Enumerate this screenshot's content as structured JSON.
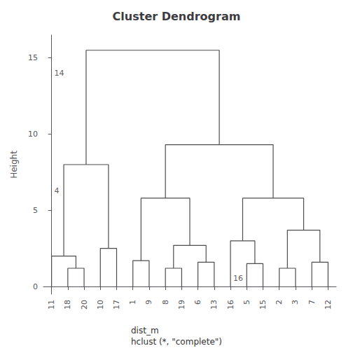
{
  "chart_data": {
    "type": "dendrogram",
    "title": "Cluster Dendrogram",
    "xlabel": "dist_m\nhclust (*, \"complete\")",
    "ylabel": "Height",
    "categories": [
      "11",
      "18",
      "20",
      "10",
      "17",
      "1",
      "9",
      "8",
      "19",
      "6",
      "13",
      "16",
      "5",
      "15",
      "2",
      "3",
      "7",
      "12"
    ],
    "merges": [
      {
        "left": 1,
        "right": 2,
        "height": 1.2
      },
      {
        "left": 0,
        "right": 18,
        "height": 2.0
      },
      {
        "left": 3,
        "right": 4,
        "height": 2.5
      },
      {
        "left": 19,
        "right": 20,
        "height": 8.0
      },
      {
        "left": 5,
        "right": 6,
        "height": 1.7
      },
      {
        "left": 7,
        "right": 8,
        "height": 1.2
      },
      {
        "left": 9,
        "right": 10,
        "height": 1.6
      },
      {
        "left": 23,
        "right": 24,
        "height": 2.7
      },
      {
        "left": 22,
        "right": 25,
        "height": 5.8
      },
      {
        "left": 12,
        "right": 13,
        "height": 1.5
      },
      {
        "left": 11,
        "right": 27,
        "height": 3.0
      },
      {
        "left": 14,
        "right": 15,
        "height": 1.2
      },
      {
        "left": 16,
        "right": 17,
        "height": 1.6
      },
      {
        "left": 29,
        "right": 30,
        "height": 3.7
      },
      {
        "left": 28,
        "right": 31,
        "height": 5.8
      },
      {
        "left": 26,
        "right": 32,
        "height": 9.3
      },
      {
        "left": 21,
        "right": 33,
        "height": 15.5
      }
    ],
    "color": "#4d4d4d",
    "ylim": [
      -0.5,
      16.5
    ],
    "yticks": [
      0,
      5,
      10,
      15
    ],
    "grid": false,
    "annotations": [
      {
        "text": "14",
        "leaf": "11",
        "y": 14.0
      },
      {
        "text": "4",
        "leaf": "11",
        "y": 6.3
      },
      {
        "text": "16",
        "leaf": "16",
        "y": 0.55
      }
    ]
  }
}
